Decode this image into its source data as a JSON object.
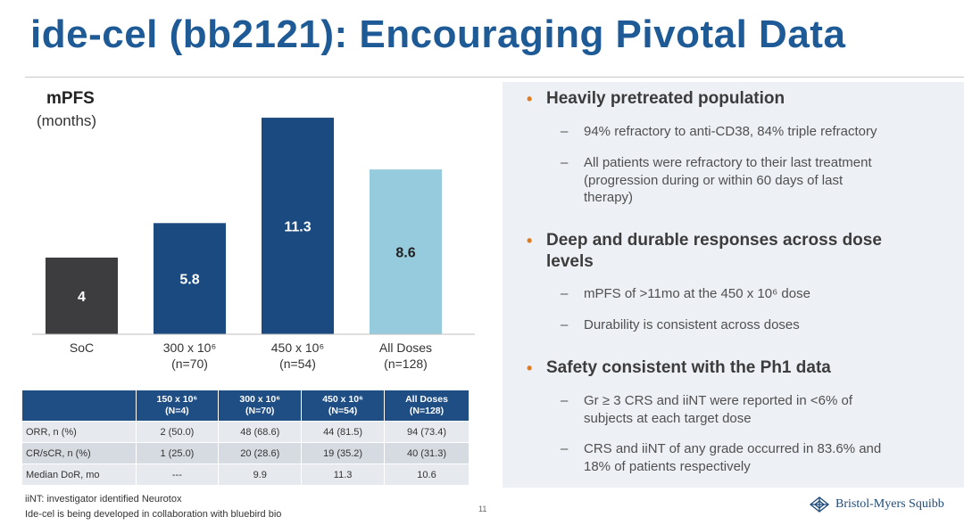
{
  "title": "ide-cel (bb2121):  Encouraging Pivotal Data",
  "chart_data": {
    "type": "bar",
    "title": "mPFS",
    "subtitle": "(months)",
    "categories": [
      {
        "line1": "SoC",
        "line2": ""
      },
      {
        "line1": "300 x 10⁶",
        "line2": "(n=70)"
      },
      {
        "line1": "450 x 10⁶",
        "line2": "(n=54)"
      },
      {
        "line1": "All Doses",
        "line2": "(n=128)"
      }
    ],
    "values": [
      4,
      5.8,
      11.3,
      8.6
    ],
    "value_labels": [
      "4",
      "5.8",
      "11.3",
      "8.6"
    ],
    "colors": [
      "#3d3d3f",
      "#1b4a80",
      "#1b4a80",
      "#96cadd"
    ],
    "label_colors": [
      "#ffffff",
      "#ffffff",
      "#ffffff",
      "#222222"
    ],
    "ylim": [
      0,
      12
    ]
  },
  "table": {
    "headers": [
      {
        "l1": "",
        "l2": ""
      },
      {
        "l1": "150 x 10⁶",
        "l2": "(N=4)"
      },
      {
        "l1": "300 x 10⁶",
        "l2": "(N=70)"
      },
      {
        "l1": "450 x 10⁶",
        "l2": "(N=54)"
      },
      {
        "l1": "All Doses",
        "l2": "(N=128)"
      }
    ],
    "rows": [
      [
        "ORR, n (%)",
        "2 (50.0)",
        "48 (68.6)",
        "44 (81.5)",
        "94 (73.4)"
      ],
      [
        "CR/sCR, n (%)",
        "1 (25.0)",
        "20 (28.6)",
        "19 (35.2)",
        "40 (31.3)"
      ],
      [
        "Median DoR, mo",
        "---",
        "9.9",
        "11.3",
        "10.6"
      ]
    ]
  },
  "bullets": [
    {
      "dot": "•",
      "lines": [
        "Heavily pretreated population"
      ],
      "subs": [
        {
          "dash": "–",
          "lines": [
            "94% refractory to anti-CD38, 84% triple refractory"
          ]
        },
        {
          "dash": "–",
          "lines": [
            "All patients were refractory to their last treatment",
            "(progression during or within 60 days of last",
            "therapy)"
          ]
        }
      ]
    },
    {
      "dot": "•",
      "lines": [
        "Deep and durable responses across dose",
        "levels"
      ],
      "subs": [
        {
          "dash": "–",
          "lines": [
            "mPFS of >11mo at the 450 x 10⁶ dose"
          ]
        },
        {
          "dash": "–",
          "lines": [
            "Durability is consistent across doses"
          ]
        }
      ]
    },
    {
      "dot": "•",
      "lines": [
        "Safety consistent with the Ph1 data"
      ],
      "subs": [
        {
          "dash": "–",
          "lines": [
            "Gr ≥ 3 CRS and iiNT were reported in <6% of",
            "subjects at each target dose"
          ]
        },
        {
          "dash": "–",
          "lines": [
            "CRS and iiNT of any grade occurred in 83.6% and",
            "18% of patients respectively"
          ]
        }
      ]
    }
  ],
  "footnotes": [
    "iiNT: investigator identified Neurotox",
    "Ide-cel is being developed in collaboration with bluebird bio"
  ],
  "page_number": "11",
  "logo_text": "Bristol-Myers Squibb",
  "colors": {
    "title": "#1e5a96",
    "bullet_dot": "#e07b1f",
    "table_header": "#1f4e85"
  }
}
